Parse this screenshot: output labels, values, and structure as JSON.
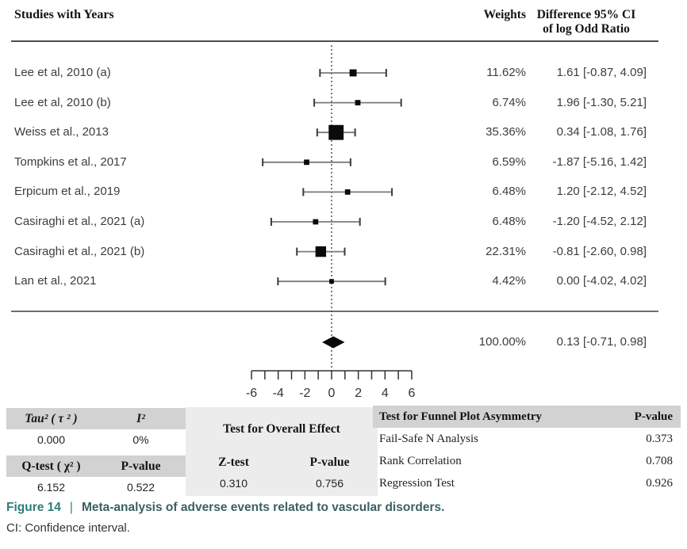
{
  "header": {
    "studies_label": "Studies with Years",
    "weights_label": "Weights",
    "effect_label_line1": "Difference 95% CI",
    "effect_label_line2": "of log Odd Ratio"
  },
  "chart_data": {
    "type": "forest",
    "effect_measure": "Difference of log Odd Ratio",
    "axis": {
      "min": -6,
      "max": 6,
      "tick_step": 1,
      "label_step": 2,
      "tick_labels": [
        "-6",
        "-4",
        "-2",
        "0",
        "2",
        "4",
        "6"
      ],
      "zero_reference_line": 0
    },
    "studies": [
      {
        "label": "Lee et al, 2010 (a)",
        "weight_pct": 11.62,
        "weight_label": "11.62%",
        "estimate": 1.61,
        "ci_low": -0.87,
        "ci_high": 4.09,
        "ci_label": "1.61 [-0.87, 4.09]"
      },
      {
        "label": "Lee et al, 2010 (b)",
        "weight_pct": 6.74,
        "weight_label": "6.74%",
        "estimate": 1.96,
        "ci_low": -1.3,
        "ci_high": 5.21,
        "ci_label": "1.96 [-1.30, 5.21]"
      },
      {
        "label": "Weiss et al., 2013",
        "weight_pct": 35.36,
        "weight_label": "35.36%",
        "estimate": 0.34,
        "ci_low": -1.08,
        "ci_high": 1.76,
        "ci_label": "0.34 [-1.08, 1.76]"
      },
      {
        "label": "Tompkins et al., 2017",
        "weight_pct": 6.59,
        "weight_label": "6.59%",
        "estimate": -1.87,
        "ci_low": -5.16,
        "ci_high": 1.42,
        "ci_label": "-1.87 [-5.16, 1.42]"
      },
      {
        "label": "Erpicum et al., 2019",
        "weight_pct": 6.48,
        "weight_label": "6.48%",
        "estimate": 1.2,
        "ci_low": -2.12,
        "ci_high": 4.52,
        "ci_label": "1.20 [-2.12, 4.52]"
      },
      {
        "label": "Casiraghi et al., 2021 (a)",
        "weight_pct": 6.48,
        "weight_label": "6.48%",
        "estimate": -1.2,
        "ci_low": -4.52,
        "ci_high": 2.12,
        "ci_label": "-1.20 [-4.52, 2.12]"
      },
      {
        "label": "Casiraghi et al., 2021 (b)",
        "weight_pct": 22.31,
        "weight_label": "22.31%",
        "estimate": -0.81,
        "ci_low": -2.6,
        "ci_high": 0.98,
        "ci_label": "-0.81 [-2.60, 0.98]"
      },
      {
        "label": "Lan et al., 2021",
        "weight_pct": 4.42,
        "weight_label": "4.42%",
        "estimate": 0.0,
        "ci_low": -4.02,
        "ci_high": 4.02,
        "ci_label": "0.00 [-4.02, 4.02]"
      }
    ],
    "overall": {
      "weight_pct": 100.0,
      "weight_label": "100.00%",
      "estimate": 0.13,
      "ci_low": -0.71,
      "ci_high": 0.98,
      "ci_label": "0.13 [-0.71, 0.98]"
    }
  },
  "stats": {
    "tau_header": "Tau² ( τ ² )",
    "i2_header": "I²",
    "tau_value": "0.000",
    "i2_value": "0%",
    "q_header": "Q-test ( χ² )",
    "q_p_header": "P-value",
    "q_value": "6.152",
    "q_p_value": "0.522",
    "overall_test_header": "Test for Overall Effect",
    "z_header": "Z-test",
    "z_p_header": "P-value",
    "z_value": "0.310",
    "z_p_value": "0.756",
    "funnel": {
      "header": "Test for Funnel Plot Asymmetry",
      "p_header": "P-value",
      "rows": [
        {
          "label": "Fail-Safe N Analysis",
          "value": "0.373"
        },
        {
          "label": "Rank Correlation",
          "value": "0.708"
        },
        {
          "label": "Regression Test",
          "value": "0.926"
        }
      ]
    }
  },
  "caption": {
    "figure_label": "Figure 14",
    "separator": "|",
    "title": "Meta-analysis of adverse events related to vascular disorders.",
    "note": "CI: Confidence interval.",
    "accent_color": "#2e7d7a"
  },
  "colors": {
    "marker": "#0a0a0a",
    "whisker": "#7a7a7a",
    "table_header_bg": "#d2d2d2",
    "mid_panel_bg": "#ececec",
    "accent_teal": "#2e7d7a"
  }
}
